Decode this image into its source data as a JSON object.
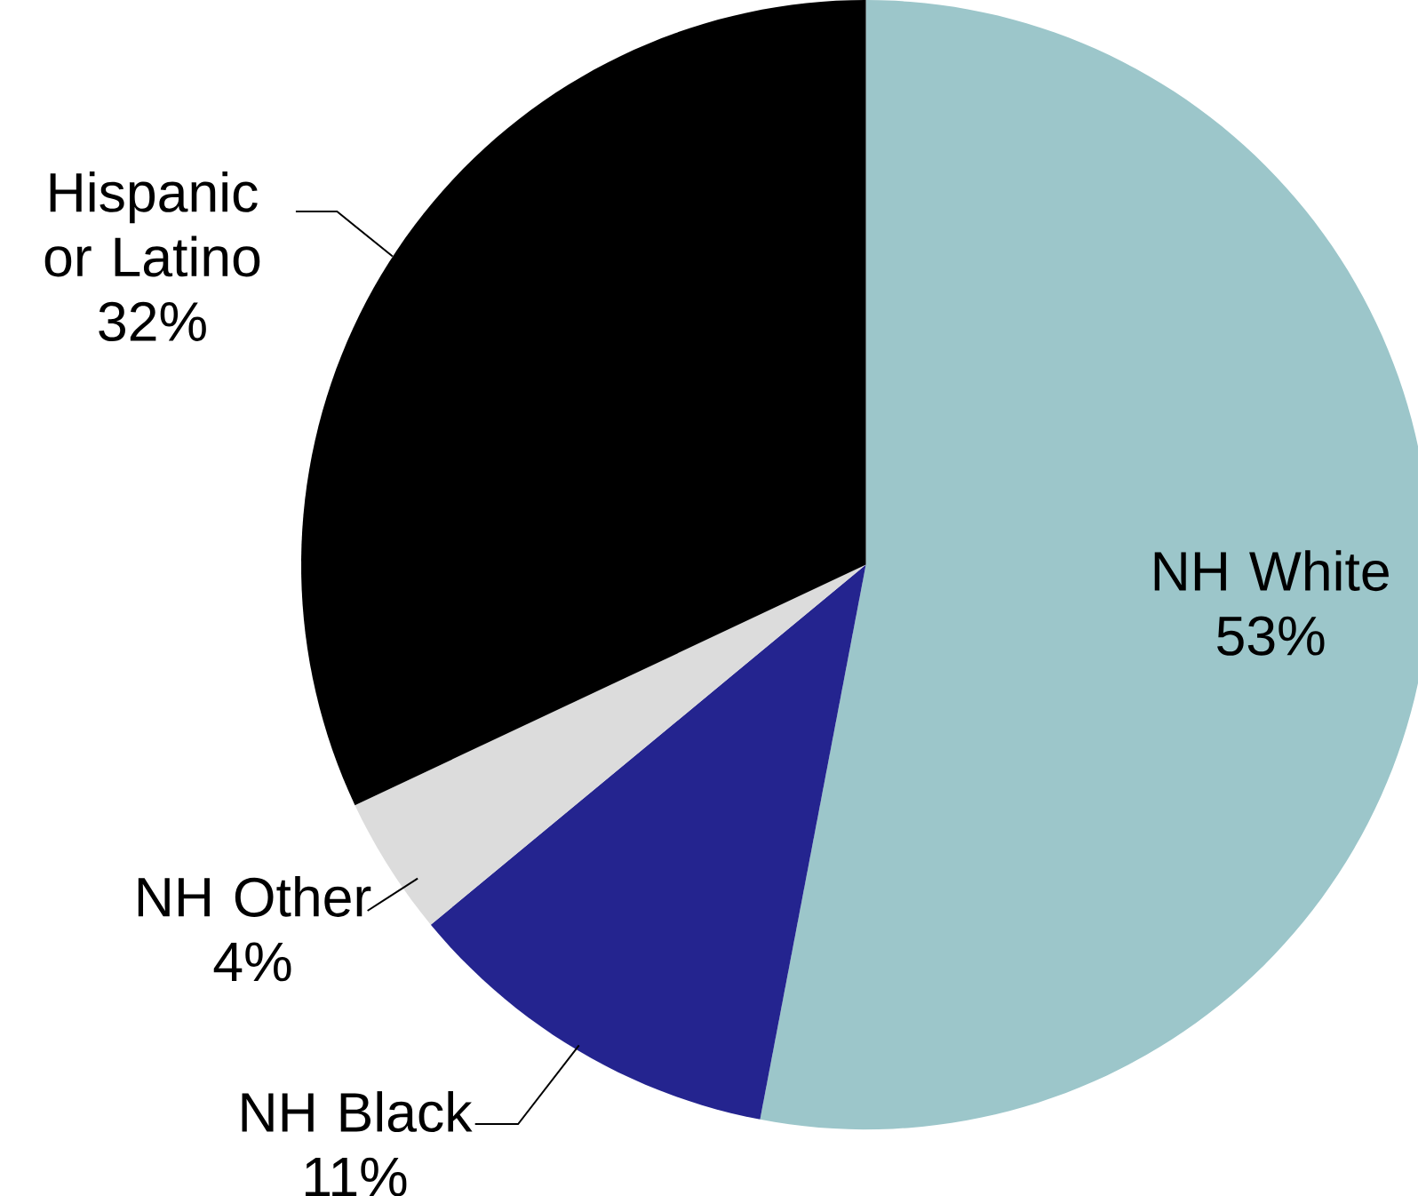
{
  "chart_data": {
    "type": "pie",
    "categories": [
      "NH White",
      "NH Black",
      "NH Other",
      "Hispanic or Latino"
    ],
    "values": [
      53,
      11,
      4,
      32
    ],
    "value_labels": [
      "53%",
      "11%",
      "4%",
      "32%"
    ],
    "colors": [
      "#9cc6ca",
      "#24248f",
      "#dcdcdc",
      "#000000"
    ]
  }
}
